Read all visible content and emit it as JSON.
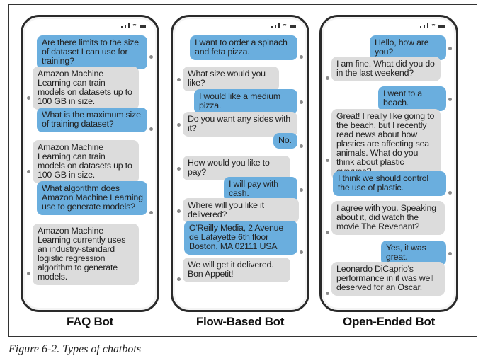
{
  "caption": "Figure 6-2. Types of chatbots",
  "phones": [
    {
      "label": "FAQ Bot",
      "messages": [
        {
          "role": "user",
          "text": "Are there limits to the size of dataset I can use for training?"
        },
        {
          "role": "bot",
          "text": "Amazon Machine Learning can train models on datasets up to 100 GB in size."
        },
        {
          "role": "user",
          "text": "What is the maximum size of training dataset?"
        },
        {
          "role": "bot",
          "text": "Amazon Machine Learning can train models on datasets up to 100 GB in size."
        },
        {
          "role": "user",
          "text": "What algorithm does Amazon Machine Learning use to generate models?"
        },
        {
          "role": "bot",
          "text": "Amazon Machine Learning currently uses an industry-standard logistic regression algorithm to generate models."
        }
      ]
    },
    {
      "label": "Flow-Based Bot",
      "messages": [
        {
          "role": "user",
          "text": "I want to order a spinach and feta pizza."
        },
        {
          "role": "bot",
          "text": "What size would you like?"
        },
        {
          "role": "user",
          "text": "I would like a medium pizza."
        },
        {
          "role": "bot",
          "text": "Do you want any sides with it?"
        },
        {
          "role": "user",
          "text": "No."
        },
        {
          "role": "bot",
          "text": "How would you like to pay?"
        },
        {
          "role": "user",
          "text": "I will pay with cash."
        },
        {
          "role": "bot",
          "text": "Where will you like it delivered?"
        },
        {
          "role": "user",
          "text": "O'Reilly Media, 2 Avenue de Lafayette 6th floor Boston, MA 02111 USA"
        },
        {
          "role": "bot",
          "text": "We will get it delivered. Bon Appetit!"
        }
      ]
    },
    {
      "label": "Open-Ended Bot",
      "messages": [
        {
          "role": "user",
          "text": "Hello, how are you?"
        },
        {
          "role": "bot",
          "text": "I am fine. What did you do in the last weekend?"
        },
        {
          "role": "user",
          "text": "I went to a beach."
        },
        {
          "role": "bot",
          "text": "Great! I really like going to the beach, but I recently read news about how plastics are affecting sea animals. What do you think about plastic overuse?"
        },
        {
          "role": "user",
          "text": "I think we should control the use of plastic."
        },
        {
          "role": "bot",
          "text": "I agree with you. Speaking about it, did watch the movie The Revenant?"
        },
        {
          "role": "user",
          "text": "Yes, it was great."
        },
        {
          "role": "bot",
          "text": "Leonardo DiCaprio's performance in it was well deserved for an Oscar."
        }
      ]
    }
  ]
}
